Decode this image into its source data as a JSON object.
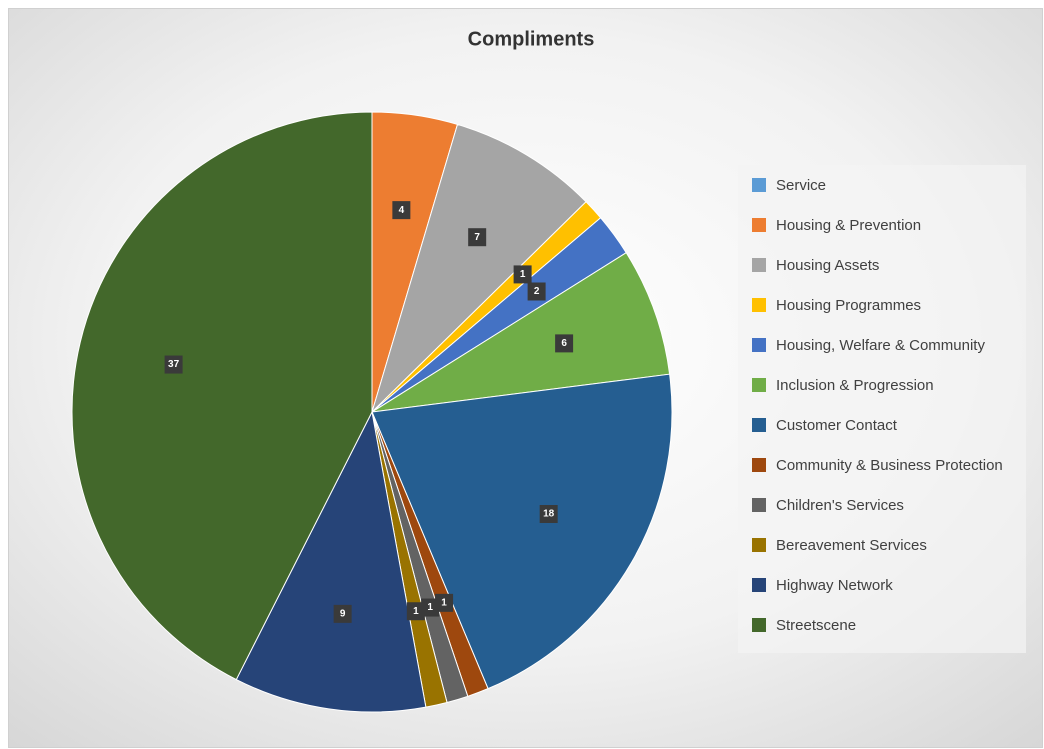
{
  "chart_data": {
    "type": "pie",
    "title": "Compliments",
    "categories": [
      "Service",
      "Housing & Prevention",
      "Housing Assets",
      "Housing Programmes",
      "Housing, Welfare & Community",
      "Inclusion & Progression",
      "Customer Contact",
      "Community & Business Protection",
      "Children's Services",
      "Bereavement Services",
      "Highway Network",
      "Streetscene"
    ],
    "values": [
      0,
      4,
      7,
      1,
      2,
      6,
      18,
      1,
      1,
      1,
      9,
      37
    ],
    "colors": [
      "#5b9bd5",
      "#ed7d31",
      "#a5a5a5",
      "#ffc000",
      "#4472c4",
      "#70ad47",
      "#255e91",
      "#9e480e",
      "#636363",
      "#997300",
      "#264478",
      "#43682b"
    ],
    "legend": "right"
  }
}
